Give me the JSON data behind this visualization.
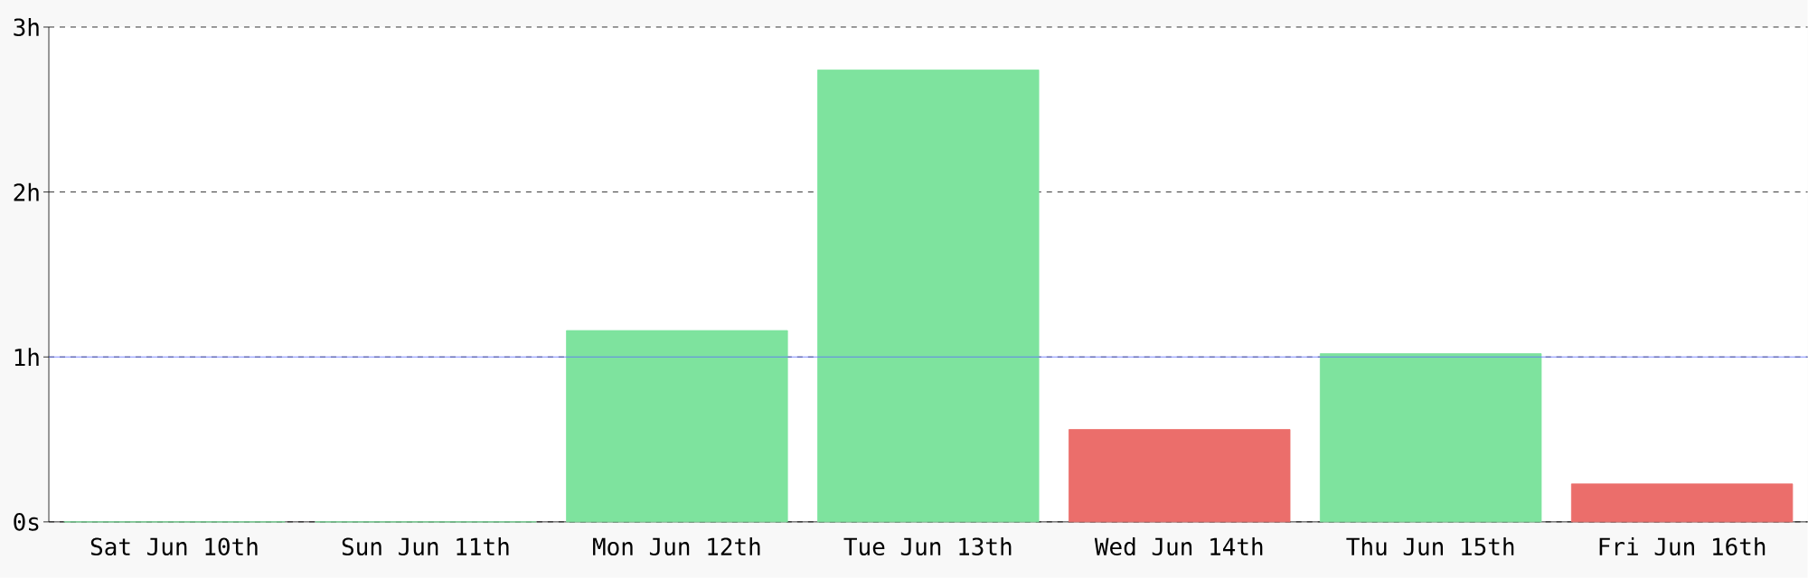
{
  "chart_data": {
    "type": "bar",
    "categories": [
      "Sat Jun 10th",
      "Sun Jun 11th",
      "Mon Jun 12th",
      "Tue Jun 13th",
      "Wed Jun 14th",
      "Thu Jun 15th",
      "Fri Jun 16th"
    ],
    "values": [
      0,
      0,
      1.16,
      2.74,
      0.56,
      1.02,
      0.23
    ],
    "colors": [
      "#7ee39e",
      "#7ee39e",
      "#7ee39e",
      "#7ee39e",
      "#eb6e6b",
      "#7ee39e",
      "#eb6e6b"
    ],
    "ylim": [
      0,
      3
    ],
    "yticks": [
      {
        "value": 0,
        "label": "0s"
      },
      {
        "value": 1,
        "label": "1h"
      },
      {
        "value": 2,
        "label": "2h"
      },
      {
        "value": 3,
        "label": "3h"
      }
    ],
    "grid": "y",
    "ref_lines": [
      {
        "axis": "y",
        "value": 1,
        "color": "#5a6cff"
      }
    ]
  }
}
